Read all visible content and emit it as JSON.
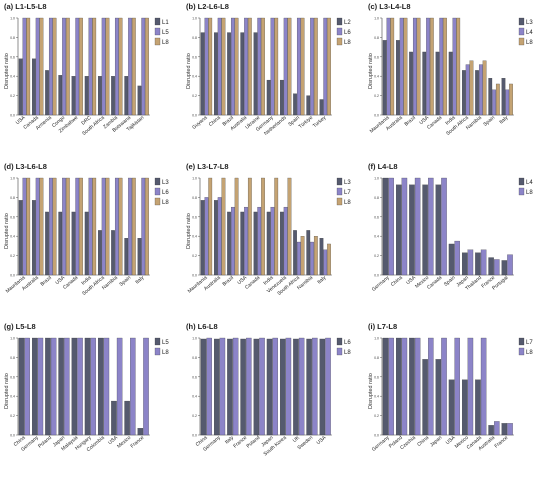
{
  "colors": {
    "L1": "#555a6e",
    "L2": "#555a6e",
    "L3": "#555a6e",
    "L4": "#555a6e",
    "L5": "#8c84c8",
    "L6": "#8c84c8",
    "L7": "#8c84c8",
    "L8": "#c4a373",
    "L5_last": "#8c84c8",
    "L6_last": "#8c84c8",
    "L7_last": "#8c84c8",
    "L8_2": "#8c84c8"
  },
  "chart_data": [
    {
      "id": "a",
      "type": "bar",
      "title": "(a) L1-L5-L8",
      "ylabel": "Disrupted ratio",
      "ylim": [
        0,
        1
      ],
      "categories": [
        "USA",
        "Canada",
        "Armenia",
        "Congo",
        "Zimbabwe",
        "DRC",
        "South Africa",
        "Zambia",
        "Botswana",
        "Tajikistan"
      ],
      "series": [
        {
          "name": "L1",
          "color": "#555a6e",
          "values": [
            0.58,
            0.58,
            0.46,
            0.41,
            0.4,
            0.4,
            0.4,
            0.4,
            0.4,
            0.3
          ]
        },
        {
          "name": "L5",
          "color": "#8c84c8",
          "values": [
            1,
            1,
            1,
            1,
            1,
            1,
            1,
            1,
            1,
            1
          ]
        },
        {
          "name": "L8",
          "color": "#c4a373",
          "values": [
            1,
            1,
            1,
            1,
            1,
            1,
            1,
            1,
            1,
            1
          ]
        }
      ]
    },
    {
      "id": "b",
      "type": "bar",
      "title": "(b) L2-L6-L8",
      "ylabel": "Disrupted ratio",
      "ylim": [
        0,
        1
      ],
      "categories": [
        "Guyana",
        "China",
        "Brazil",
        "Australia",
        "Ukraine",
        "Germany",
        "Netherlands",
        "Spain",
        "Türkiye",
        "Turkey"
      ],
      "series": [
        {
          "name": "L2",
          "color": "#555a6e",
          "values": [
            0.85,
            0.85,
            0.85,
            0.85,
            0.85,
            0.36,
            0.36,
            0.22,
            0.2,
            0.16
          ]
        },
        {
          "name": "L6",
          "color": "#8c84c8",
          "values": [
            1,
            1,
            1,
            1,
            1,
            1,
            1,
            1,
            1,
            1
          ]
        },
        {
          "name": "L8",
          "color": "#c4a373",
          "values": [
            1,
            1,
            1,
            1,
            1,
            1,
            1,
            1,
            1,
            1
          ]
        }
      ]
    },
    {
      "id": "c",
      "type": "bar",
      "title": "(c) L3-L4-L8",
      "ylabel": "Disrupted ratio",
      "ylim": [
        0,
        1
      ],
      "categories": [
        "Mauritania",
        "Australia",
        "Brazil",
        "USA",
        "Canada",
        "India",
        "South Africa",
        "Namibia",
        "Spain",
        "Italy"
      ],
      "series": [
        {
          "name": "L3",
          "color": "#555a6e",
          "values": [
            0.77,
            0.77,
            0.65,
            0.65,
            0.65,
            0.65,
            0.46,
            0.46,
            0.38,
            0.38
          ]
        },
        {
          "name": "L4",
          "color": "#8c84c8",
          "values": [
            1,
            1,
            1,
            1,
            1,
            1,
            0.52,
            0.52,
            0.26,
            0.26
          ]
        },
        {
          "name": "L8",
          "color": "#c4a373",
          "values": [
            1,
            1,
            1,
            1,
            1,
            1,
            0.56,
            0.56,
            0.32,
            0.32
          ]
        }
      ]
    },
    {
      "id": "d",
      "type": "bar",
      "title": "(d) L3-L6-L8",
      "ylabel": "Disrupted ratio",
      "ylim": [
        0,
        1
      ],
      "categories": [
        "Mauritania",
        "Australia",
        "Brazil",
        "USA",
        "Canada",
        "India",
        "South Africa",
        "Namibia",
        "Spain",
        "Italy"
      ],
      "series": [
        {
          "name": "L3",
          "color": "#555a6e",
          "values": [
            0.77,
            0.77,
            0.65,
            0.65,
            0.65,
            0.65,
            0.46,
            0.46,
            0.38,
            0.38
          ]
        },
        {
          "name": "L6",
          "color": "#8c84c8",
          "values": [
            1,
            1,
            1,
            1,
            1,
            1,
            1,
            1,
            1,
            1
          ]
        },
        {
          "name": "L8",
          "color": "#c4a373",
          "values": [
            1,
            1,
            1,
            1,
            1,
            1,
            1,
            1,
            1,
            1
          ]
        }
      ]
    },
    {
      "id": "e",
      "type": "bar",
      "title": "(e) L3-L7-L8",
      "ylabel": "Disrupted ratio",
      "ylim": [
        0,
        1
      ],
      "categories": [
        "Mauritania",
        "Australia",
        "Brazil",
        "USA",
        "Canada",
        "India",
        "Venezuela",
        "South Africa",
        "Namibia",
        "Italy"
      ],
      "series": [
        {
          "name": "L3",
          "color": "#555a6e",
          "values": [
            0.77,
            0.77,
            0.65,
            0.65,
            0.65,
            0.65,
            0.65,
            0.46,
            0.46,
            0.38
          ]
        },
        {
          "name": "L7",
          "color": "#8c84c8",
          "values": [
            0.8,
            0.8,
            0.7,
            0.7,
            0.7,
            0.7,
            0.7,
            0.34,
            0.34,
            0.26
          ]
        },
        {
          "name": "L8",
          "color": "#c4a373",
          "values": [
            1,
            1,
            1,
            1,
            1,
            1,
            1,
            0.4,
            0.4,
            0.32
          ]
        }
      ]
    },
    {
      "id": "f",
      "type": "bar",
      "title": "(f) L4-L8",
      "ylabel": "",
      "ylim": [
        0,
        1
      ],
      "categories": [
        "Germany",
        "China",
        "USA",
        "Mexico",
        "Canada",
        "Spain",
        "Japan",
        "Thailand",
        "France",
        "Portugal"
      ],
      "series": [
        {
          "name": "L4",
          "color": "#555a6e",
          "values": [
            1.0,
            0.93,
            0.93,
            0.93,
            0.93,
            0.32,
            0.23,
            0.23,
            0.18,
            0.15
          ]
        },
        {
          "name": "L8",
          "color": "#8c84c8",
          "values": [
            1.0,
            1.0,
            1.0,
            1.0,
            1.0,
            0.35,
            0.26,
            0.26,
            0.16,
            0.21
          ]
        }
      ]
    },
    {
      "id": "g",
      "type": "bar",
      "title": "(g) L5-L8",
      "ylabel": "Disrupted ratio",
      "ylim": [
        0,
        1
      ],
      "categories": [
        "China",
        "Germany",
        "Poland",
        "Japan",
        "Malaysia",
        "Hungary",
        "Colombia",
        "USA",
        "Mexico",
        "France"
      ],
      "series": [
        {
          "name": "L5",
          "color": "#555a6e",
          "values": [
            1,
            1,
            1,
            1,
            1,
            1,
            1,
            0.35,
            0.35,
            0.07
          ]
        },
        {
          "name": "L8",
          "color": "#8c84c8",
          "values": [
            1,
            1,
            1,
            1,
            1,
            1,
            1,
            1,
            1,
            1
          ]
        }
      ]
    },
    {
      "id": "h",
      "type": "bar",
      "title": "(h) L6-L8",
      "ylabel": "",
      "ylim": [
        0,
        1
      ],
      "categories": [
        "China",
        "Germany",
        "Italy",
        "France",
        "Poland",
        "Japan",
        "South Korea",
        "UK",
        "Sweden",
        "USA"
      ],
      "series": [
        {
          "name": "L6",
          "color": "#555a6e",
          "values": [
            0.99,
            0.99,
            0.99,
            0.99,
            0.99,
            0.99,
            0.99,
            0.99,
            0.99,
            0.99
          ]
        },
        {
          "name": "L8",
          "color": "#8c84c8",
          "values": [
            1,
            1,
            1,
            1,
            1,
            1,
            1,
            1,
            1,
            1
          ]
        }
      ]
    },
    {
      "id": "i",
      "type": "bar",
      "title": "(i) L7-L8",
      "ylabel": "Disrupted ratio",
      "ylim": [
        0,
        1
      ],
      "categories": [
        "Germany",
        "Poland",
        "Czechia",
        "China",
        "Japan",
        "USA",
        "Mexico",
        "Canada",
        "Australia",
        "France"
      ],
      "series": [
        {
          "name": "L7",
          "color": "#555a6e",
          "values": [
            1,
            1,
            1,
            0.78,
            0.78,
            0.57,
            0.57,
            0.57,
            0.1,
            0.12
          ]
        },
        {
          "name": "L8",
          "color": "#8c84c8",
          "values": [
            1,
            1,
            1,
            1,
            1,
            1,
            1,
            1,
            0.14,
            0.12
          ]
        }
      ]
    }
  ]
}
